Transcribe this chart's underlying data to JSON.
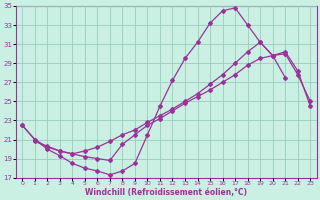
{
  "xlabel": "Windchill (Refroidissement éolien,°C)",
  "bg_color": "#caf0e4",
  "grid_color": "#99ccbb",
  "line_color": "#993399",
  "xlim_min": -0.5,
  "xlim_max": 23.5,
  "ylim_min": 17,
  "ylim_max": 35,
  "yticks": [
    17,
    19,
    21,
    23,
    25,
    27,
    29,
    31,
    33,
    35
  ],
  "xticks": [
    0,
    1,
    2,
    3,
    4,
    5,
    6,
    7,
    8,
    9,
    10,
    11,
    12,
    13,
    14,
    15,
    16,
    17,
    18,
    19,
    20,
    21,
    22,
    23
  ],
  "series": [
    {
      "x": [
        0,
        1,
        2,
        3,
        4,
        5,
        6,
        7,
        8,
        9,
        10,
        11,
        12,
        13,
        14,
        15,
        16,
        17,
        18,
        19,
        20,
        21
      ],
      "y": [
        22.5,
        21.0,
        20.0,
        19.3,
        18.5,
        18.0,
        17.7,
        17.3,
        17.7,
        18.5,
        21.5,
        24.5,
        27.2,
        29.5,
        31.2,
        33.2,
        34.5,
        34.8,
        33.0,
        31.2,
        29.8,
        27.5
      ]
    },
    {
      "x": [
        0,
        1,
        2,
        3,
        4,
        5,
        6,
        7,
        8,
        9,
        10,
        11,
        12,
        13,
        14,
        15,
        16,
        17,
        18,
        19,
        20,
        21,
        22,
        23
      ],
      "y": [
        22.5,
        21.0,
        20.2,
        19.8,
        19.5,
        19.8,
        20.2,
        20.8,
        21.5,
        22.0,
        22.8,
        23.5,
        24.2,
        25.0,
        25.8,
        26.8,
        27.8,
        29.0,
        30.2,
        31.2,
        29.8,
        30.0,
        27.8,
        25.0
      ]
    },
    {
      "x": [
        1,
        2,
        3,
        4,
        5,
        6,
        7,
        8,
        9,
        10,
        11,
        12,
        13,
        14,
        15,
        16,
        17,
        18,
        19,
        20,
        21,
        22,
        23
      ],
      "y": [
        20.8,
        20.3,
        19.8,
        19.5,
        19.2,
        19.0,
        18.8,
        20.5,
        21.5,
        22.5,
        23.2,
        24.0,
        24.8,
        25.5,
        26.2,
        27.0,
        27.8,
        28.8,
        29.5,
        29.8,
        30.2,
        28.2,
        24.5
      ]
    }
  ]
}
